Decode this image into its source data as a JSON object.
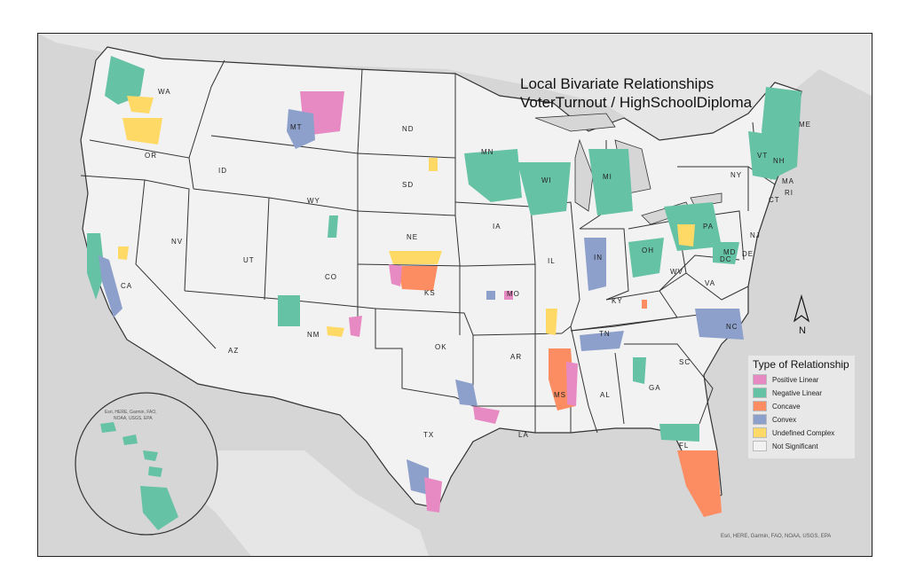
{
  "title": {
    "line1": "Local Bivariate Relationships",
    "line2": "VoterTurnout / HighSchoolDiploma"
  },
  "legend": {
    "title": "Type of Relationship",
    "items": [
      {
        "label": "Positive Linear",
        "color": "#e78ac3"
      },
      {
        "label": "Negative Linear",
        "color": "#66c2a5"
      },
      {
        "label": "Concave",
        "color": "#fc8d62"
      },
      {
        "label": "Convex",
        "color": "#8da0cb"
      },
      {
        "label": "Undefined Complex",
        "color": "#ffd966"
      },
      {
        "label": "Not Significant",
        "color": "#f2f2f2"
      }
    ]
  },
  "state_labels": {
    "WA": "WA",
    "OR": "OR",
    "CA": "CA",
    "ID": "ID",
    "NV": "NV",
    "MT": "MT",
    "WY": "WY",
    "UT": "UT",
    "AZ": "AZ",
    "CO": "CO",
    "NM": "NM",
    "ND": "ND",
    "SD": "SD",
    "NE": "NE",
    "KS": "KS",
    "OK": "OK",
    "TX": "TX",
    "MN": "MN",
    "IA": "IA",
    "MO": "MO",
    "AR": "AR",
    "LA": "LA",
    "WI": "WI",
    "IL": "IL",
    "MS": "MS",
    "MI": "MI",
    "IN": "IN",
    "KY": "KY",
    "TN": "TN",
    "AL": "AL",
    "OH": "OH",
    "GA": "GA",
    "FL": "FL",
    "SC": "SC",
    "NC": "NC",
    "VA": "VA",
    "WV": "WV",
    "PA": "PA",
    "NY": "NY",
    "VT": "VT",
    "NH": "NH",
    "ME": "ME",
    "MA": "MA",
    "CT": "CT",
    "RI": "RI",
    "NJ": "NJ",
    "DE": "DE",
    "MD": "MD",
    "DC": "DC"
  },
  "north_arrow": "N",
  "attribution": {
    "main": "Esri, HERE, Garmin, FAO, NOAA, USGS, EPA",
    "inset_line1": "Esri, HERE, Garmin, FAO,",
    "inset_line2": "NOAA, USGS, EPA"
  },
  "colors": {
    "positive_linear": "#e78ac3",
    "negative_linear": "#66c2a5",
    "concave": "#fc8d62",
    "convex": "#8da0cb",
    "undefined_complex": "#ffd966",
    "not_significant": "#f2f2f2",
    "background": "#d6d6d6"
  }
}
